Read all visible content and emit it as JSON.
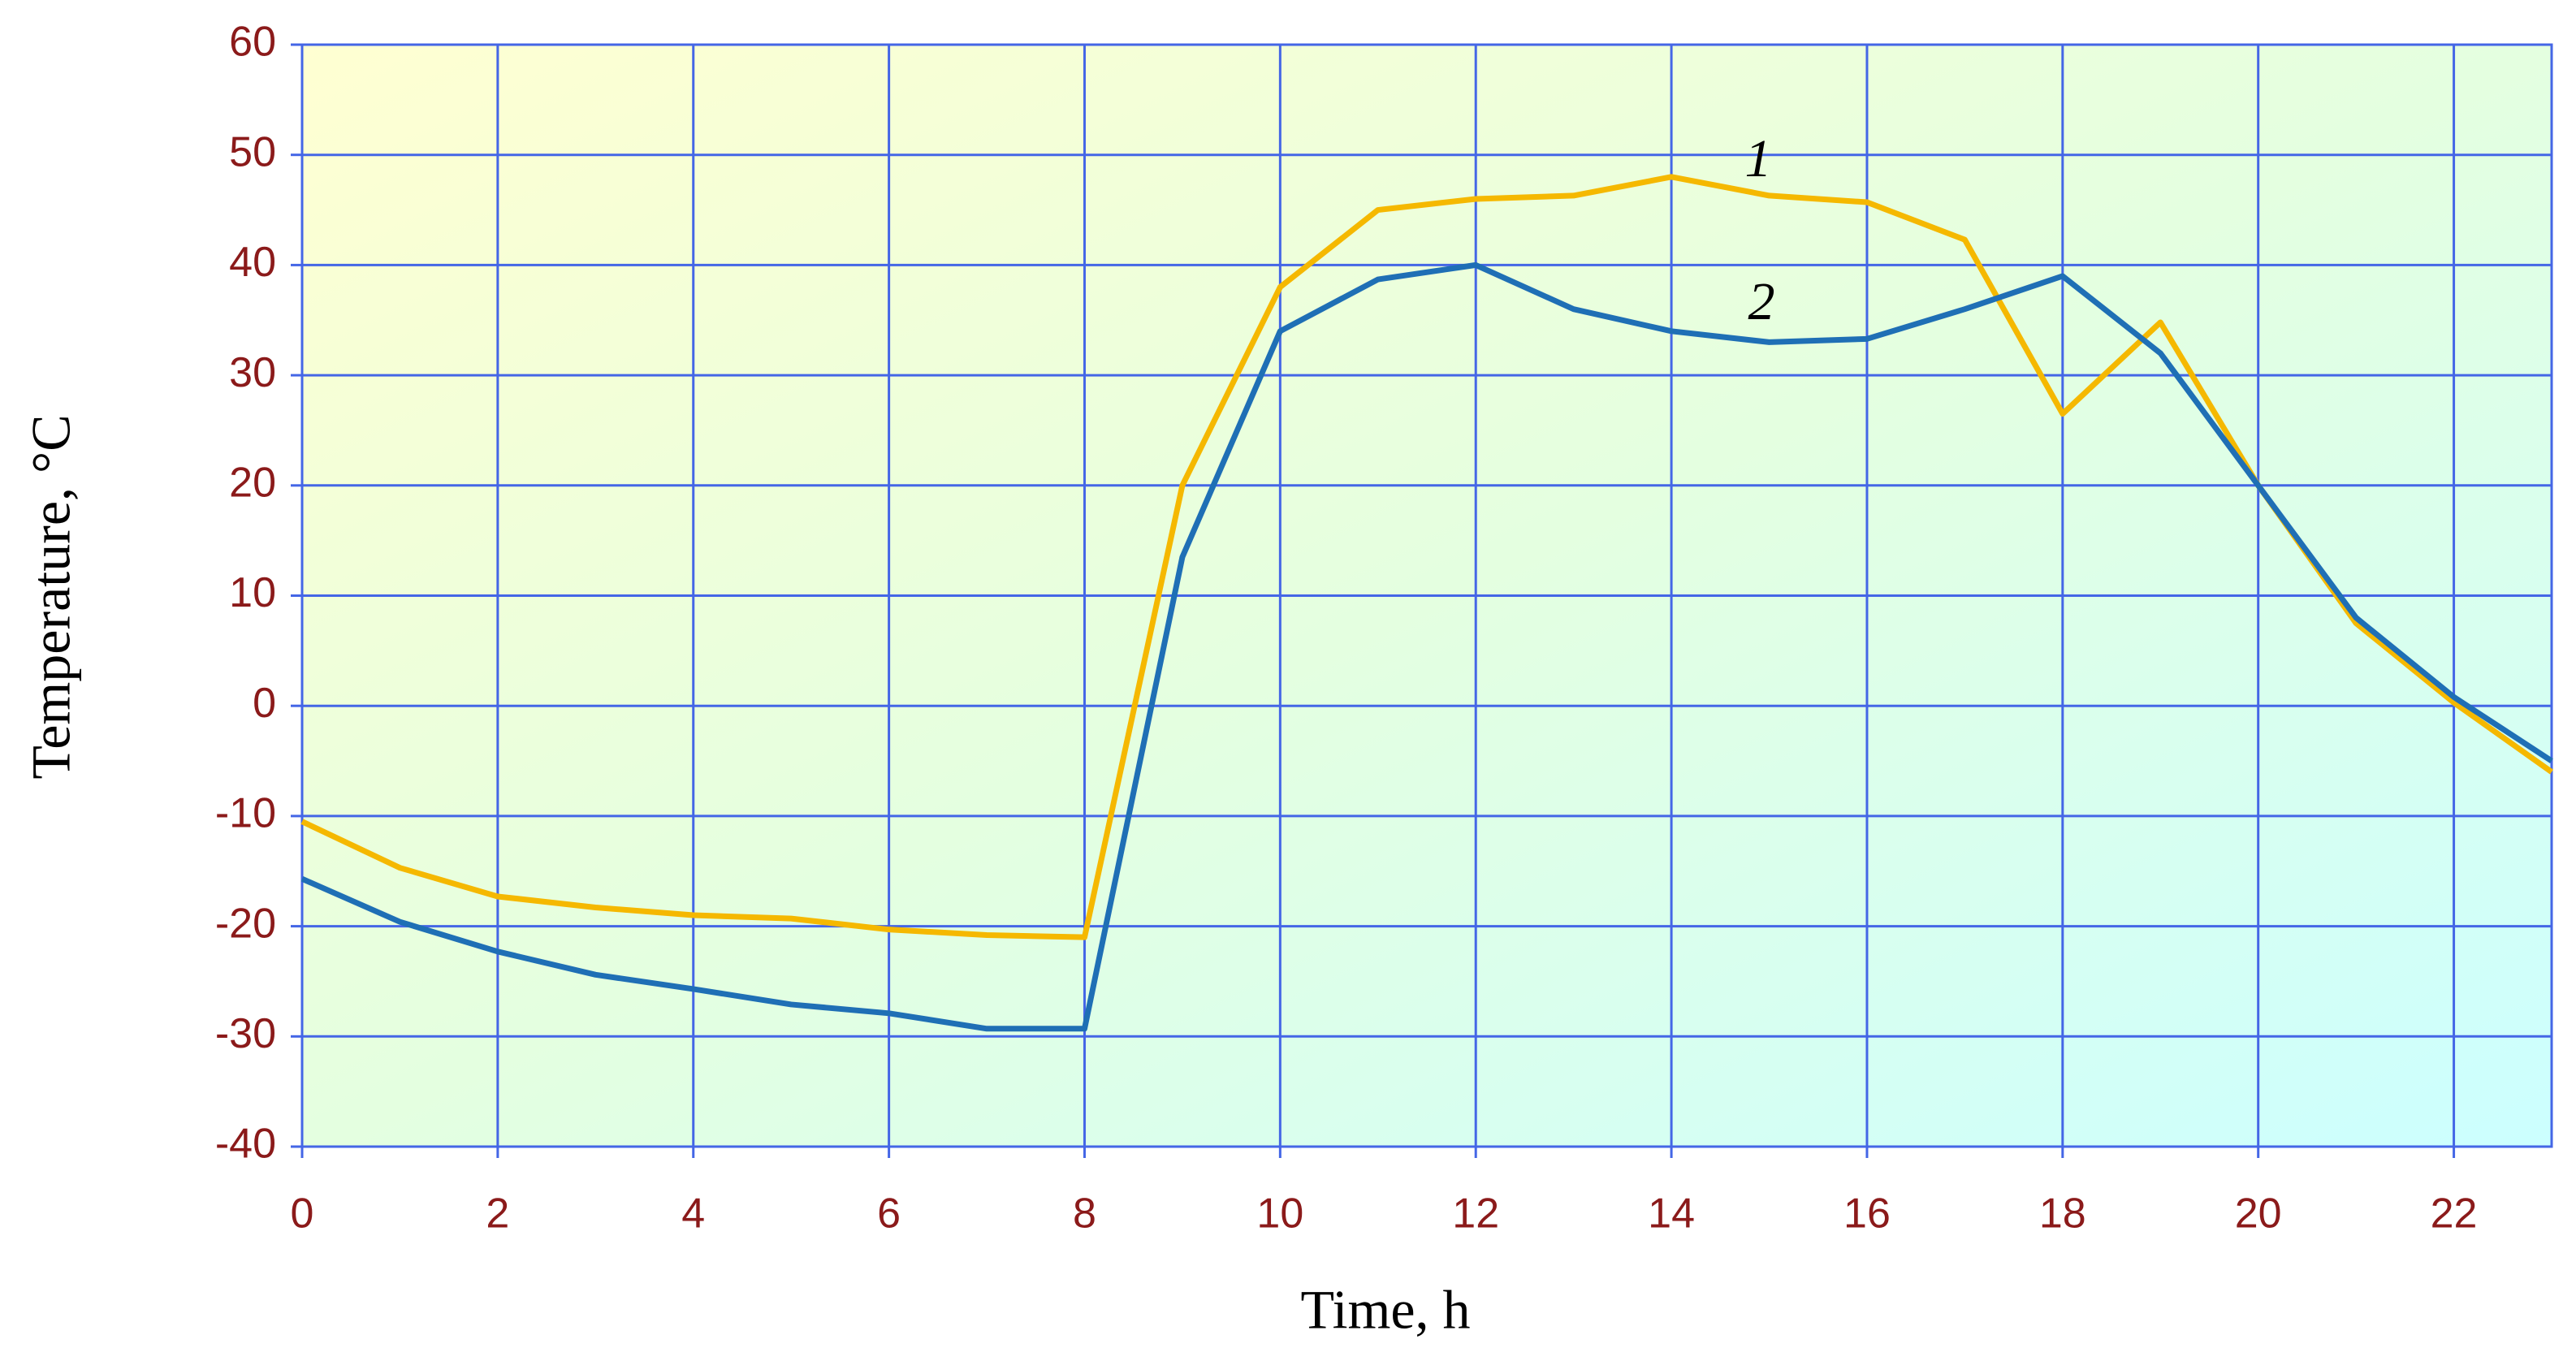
{
  "chart_data": {
    "type": "line",
    "xlabel": "Time, h",
    "ylabel": "Temperature, °C",
    "x": [
      0,
      1,
      2,
      3,
      4,
      5,
      6,
      7,
      8,
      9,
      10,
      11,
      12,
      13,
      14,
      15,
      16,
      17,
      18,
      19,
      20,
      21,
      22,
      23
    ],
    "series": [
      {
        "name": "1",
        "color": "#f5b800",
        "values": [
          -10.5,
          -14.7,
          -17.3,
          -18.3,
          -19,
          -19.3,
          -20.3,
          -20.8,
          -21,
          20,
          38,
          45,
          46,
          46.3,
          48,
          46.3,
          45.7,
          42.3,
          26.5,
          34.8,
          20,
          7.5,
          0.3,
          -6
        ]
      },
      {
        "name": "2",
        "color": "#1f6fb5",
        "values": [
          -15.7,
          -19.6,
          -22.3,
          -24.4,
          -25.7,
          -27.1,
          -27.9,
          -29.3,
          -29.3,
          13.5,
          34,
          38.7,
          40,
          36,
          34,
          33,
          33.3,
          36,
          39,
          32,
          20,
          8,
          0.8,
          -5
        ]
      }
    ],
    "xlim": [
      0,
      23
    ],
    "xticks": [
      0,
      2,
      4,
      6,
      8,
      10,
      12,
      14,
      16,
      18,
      20,
      22
    ],
    "ylim": [
      -40,
      60
    ],
    "yticks": [
      -40,
      -30,
      -20,
      -10,
      0,
      10,
      20,
      30,
      40,
      50,
      60
    ],
    "grid": true,
    "grid_color": "#4466e6"
  }
}
